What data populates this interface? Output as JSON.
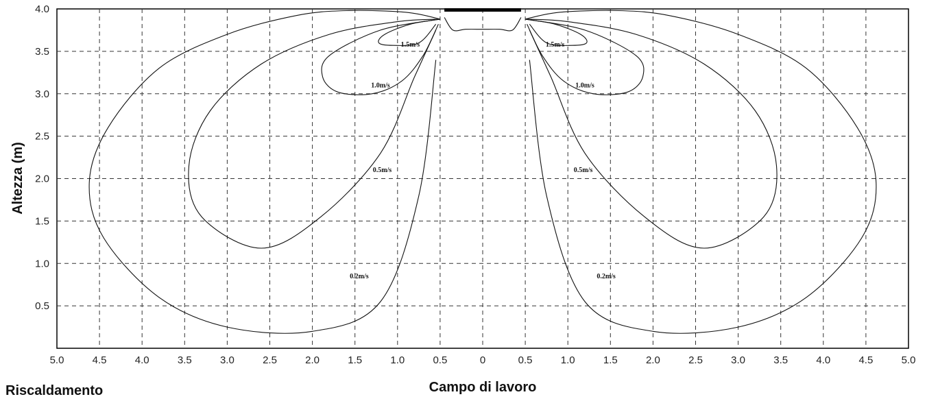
{
  "chart_data": {
    "type": "line",
    "xlabel": "Campo di lavoro",
    "ylabel": "Altezza (m)",
    "xlim": [
      -5,
      5
    ],
    "ylim": [
      0,
      4
    ],
    "x_ticks": [
      -5,
      -4.5,
      -4,
      -3.5,
      -3,
      -2.5,
      -2,
      -1.5,
      -1,
      -0.5,
      0,
      0.5,
      1,
      1.5,
      2,
      2.5,
      3,
      3.5,
      4,
      4.5,
      5
    ],
    "x_tick_labels": [
      "5.0",
      "4.5",
      "4.0",
      "3.5",
      "3.0",
      "2.5",
      "2.0",
      "1.5",
      "1.0",
      "0.5",
      "0",
      "0.5",
      "1.0",
      "1.5",
      "2.0",
      "2.5",
      "3.0",
      "3.5",
      "4.0",
      "4.5",
      "5.0"
    ],
    "y_ticks": [
      0.5,
      1,
      1.5,
      2,
      2.5,
      3,
      3.5,
      4
    ],
    "y_tick_labels": [
      "0.5",
      "1.0",
      "1.5",
      "2.0",
      "2.5",
      "3.0",
      "3.5",
      "4.0"
    ],
    "grid": "dashed",
    "outlet": {
      "x": [
        -0.45,
        0.45
      ],
      "y": 4.0
    },
    "series": [
      {
        "name": "0.2m/s",
        "label_pos": [
          -1.45,
          0.85
        ],
        "x": [
          0.5,
          0.9,
          1.6,
          2.2,
          3.0,
          3.8,
          4.4,
          4.62,
          4.45,
          3.8,
          3.0,
          2.0,
          1.2,
          0.75,
          0.55
        ],
        "y": [
          3.88,
          3.96,
          3.98,
          3.92,
          3.7,
          3.3,
          2.6,
          1.95,
          1.3,
          0.6,
          0.25,
          0.2,
          0.55,
          1.8,
          3.4
        ]
      },
      {
        "name": "0.5m/s",
        "label_pos": [
          -1.18,
          2.1
        ],
        "x": [
          0.5,
          1.0,
          1.8,
          2.6,
          3.2,
          3.45,
          3.3,
          2.6,
          1.9,
          1.2,
          0.8,
          0.55
        ],
        "y": [
          3.88,
          3.85,
          3.7,
          3.35,
          2.8,
          2.15,
          1.55,
          1.18,
          1.55,
          2.3,
          3.2,
          3.75
        ]
      },
      {
        "name": "1.0m/s",
        "label_pos": [
          -1.2,
          3.1
        ],
        "x": [
          0.5,
          1.2,
          1.8,
          1.88,
          1.7,
          1.3,
          0.95,
          0.7,
          0.52
        ],
        "y": [
          3.88,
          3.75,
          3.45,
          3.2,
          3.02,
          3.0,
          3.15,
          3.45,
          3.82
        ]
      },
      {
        "name": "1.5m/s",
        "label_pos": [
          -0.85,
          3.58
        ],
        "x": [
          0.5,
          0.85,
          1.15,
          1.22,
          1.05,
          0.75,
          0.55
        ],
        "y": [
          3.88,
          3.82,
          3.7,
          3.6,
          3.57,
          3.6,
          3.82
        ]
      }
    ],
    "mirrored": true,
    "core_contour_x": [
      0.45,
      0.35,
      0.2,
      0.0
    ],
    "core_contour_y": [
      3.9,
      3.75,
      3.76,
      3.76
    ]
  },
  "footer_text": "Riscaldamento"
}
